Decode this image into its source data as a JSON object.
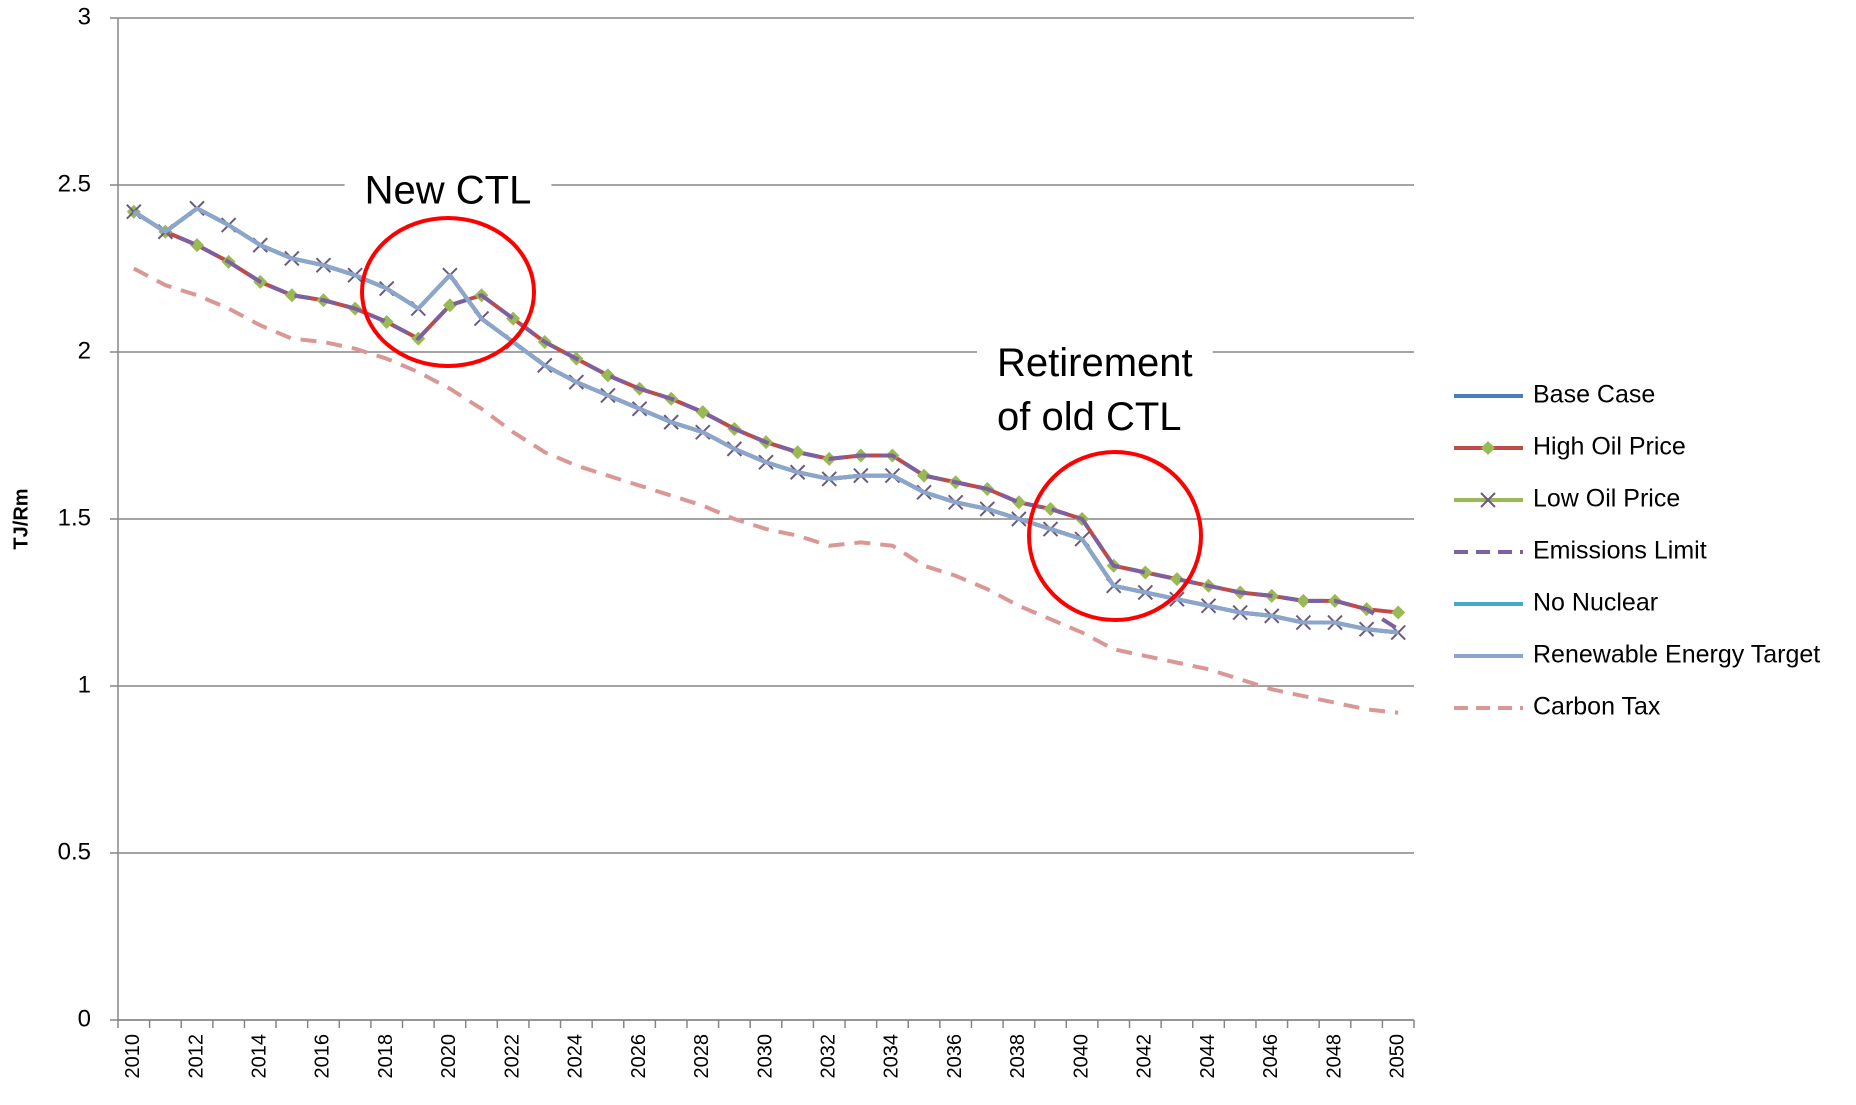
{
  "chart_data": {
    "type": "line",
    "y_label": "TJ/Rm",
    "categories": [
      "2010",
      null,
      "2012",
      null,
      "2014",
      null,
      "2016",
      null,
      "2018",
      null,
      "2020",
      null,
      "2022",
      null,
      "2024",
      null,
      "2026",
      null,
      "2028",
      null,
      "2030",
      null,
      "2032",
      null,
      "2034",
      null,
      "2036",
      null,
      "2038",
      null,
      "2040",
      null,
      "2042",
      null,
      "2044",
      null,
      "2046",
      null,
      "2048",
      null,
      "2050"
    ],
    "ylim": [
      0,
      3
    ],
    "yticks": [
      0,
      0.5,
      1,
      1.5,
      2,
      2.5,
      3
    ],
    "grid": true,
    "legend": "right",
    "annotations": [
      {
        "text": "New CTL"
      },
      {
        "text": [
          "Retirement",
          "of old CTL"
        ]
      }
    ],
    "series": [
      {
        "name": "Base Case",
        "color": "#4a7ebb",
        "values": [
          2.42,
          2.36,
          2.43,
          2.38,
          2.32,
          2.28,
          2.26,
          2.23,
          2.19,
          2.13,
          2.23,
          2.1,
          2.03,
          1.96,
          1.91,
          1.87,
          1.83,
          1.79,
          1.76,
          1.71,
          1.67,
          1.64,
          1.62,
          1.63,
          1.63,
          1.58,
          1.55,
          1.53,
          1.5,
          1.47,
          1.44,
          1.3,
          1.28,
          1.26,
          1.24,
          1.22,
          1.21,
          1.19,
          1.19,
          1.17,
          1.16
        ]
      },
      {
        "name": "High Oil Price",
        "color": "#be4b48",
        "marker": "diamond",
        "marker_color": "#98b954",
        "values": [
          2.42,
          2.36,
          2.32,
          2.27,
          2.21,
          2.17,
          2.155,
          2.13,
          2.09,
          2.04,
          2.14,
          2.17,
          2.1,
          2.03,
          1.98,
          1.93,
          1.89,
          1.86,
          1.82,
          1.77,
          1.73,
          1.7,
          1.68,
          1.69,
          1.69,
          1.63,
          1.61,
          1.59,
          1.55,
          1.53,
          1.5,
          1.36,
          1.34,
          1.32,
          1.3,
          1.28,
          1.27,
          1.255,
          1.255,
          1.23,
          1.22
        ]
      },
      {
        "name": "Low Oil Price",
        "color": "#98b954",
        "marker": "x",
        "marker_color": "#6b5a7e",
        "values": [
          2.42,
          2.36,
          2.43,
          2.38,
          2.32,
          2.28,
          2.26,
          2.23,
          2.19,
          2.13,
          2.23,
          2.1,
          2.03,
          1.96,
          1.91,
          1.87,
          1.83,
          1.79,
          1.76,
          1.71,
          1.67,
          1.64,
          1.62,
          1.63,
          1.63,
          1.58,
          1.55,
          1.53,
          1.5,
          1.47,
          1.44,
          1.3,
          1.28,
          1.26,
          1.24,
          1.22,
          1.21,
          1.19,
          1.19,
          1.17,
          1.16
        ]
      },
      {
        "name": "Emissions Limit",
        "color": "#7d60a0",
        "dash": true,
        "values": [
          2.42,
          2.36,
          2.32,
          2.27,
          2.21,
          2.17,
          2.155,
          2.13,
          2.09,
          2.04,
          2.14,
          2.17,
          2.1,
          2.03,
          1.98,
          1.93,
          1.89,
          1.86,
          1.82,
          1.77,
          1.73,
          1.7,
          1.68,
          1.69,
          1.69,
          1.63,
          1.61,
          1.59,
          1.55,
          1.53,
          1.5,
          1.36,
          1.34,
          1.32,
          1.3,
          1.28,
          1.27,
          1.255,
          1.255,
          1.23,
          1.17
        ]
      },
      {
        "name": "No Nuclear",
        "color": "#46aac5",
        "values": [
          2.42,
          2.36,
          2.43,
          2.38,
          2.32,
          2.28,
          2.26,
          2.23,
          2.19,
          2.13,
          2.23,
          2.1,
          2.03,
          1.96,
          1.91,
          1.87,
          1.83,
          1.79,
          1.76,
          1.71,
          1.67,
          1.64,
          1.62,
          1.63,
          1.63,
          1.58,
          1.55,
          1.53,
          1.5,
          1.47,
          1.44,
          1.3,
          1.28,
          1.26,
          1.24,
          1.22,
          1.21,
          1.19,
          1.19,
          1.17,
          1.16
        ]
      },
      {
        "name": "Renewable Energy Target",
        "color": "#8ea5cb",
        "values": [
          2.42,
          2.36,
          2.43,
          2.38,
          2.32,
          2.28,
          2.26,
          2.23,
          2.19,
          2.13,
          2.23,
          2.1,
          2.03,
          1.96,
          1.91,
          1.87,
          1.83,
          1.79,
          1.76,
          1.71,
          1.67,
          1.64,
          1.62,
          1.63,
          1.63,
          1.58,
          1.55,
          1.53,
          1.5,
          1.47,
          1.44,
          1.3,
          1.28,
          1.26,
          1.24,
          1.22,
          1.21,
          1.19,
          1.19,
          1.17,
          1.16
        ]
      },
      {
        "name": "Carbon Tax",
        "color": "#d99795",
        "dash": true,
        "values": [
          2.25,
          2.2,
          2.17,
          2.13,
          2.08,
          2.04,
          2.03,
          2.01,
          1.98,
          1.94,
          1.89,
          1.83,
          1.76,
          1.7,
          1.66,
          1.63,
          1.6,
          1.57,
          1.54,
          1.5,
          1.47,
          1.45,
          1.42,
          1.43,
          1.42,
          1.36,
          1.33,
          1.29,
          1.24,
          1.2,
          1.16,
          1.11,
          1.09,
          1.07,
          1.05,
          1.02,
          0.99,
          0.97,
          0.95,
          0.93,
          0.92
        ]
      }
    ]
  }
}
